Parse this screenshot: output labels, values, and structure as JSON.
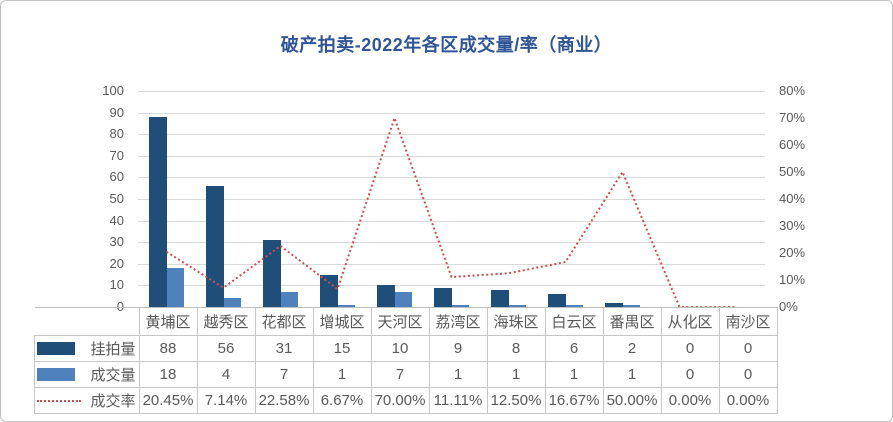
{
  "title": "破产拍卖-2022年各区成交量/率（商业）",
  "colors": {
    "title_text": "#2F5597",
    "bar_listed": "#1F4E79",
    "bar_sold": "#4F81BD",
    "rate_line": "#C9504C",
    "gridline": "#d9d9d9",
    "axis_text": "#595959",
    "table_border": "#c6c6c6"
  },
  "left_axis_ticks": [
    "100",
    "90",
    "80",
    "70",
    "60",
    "50",
    "40",
    "30",
    "20",
    "10",
    "0"
  ],
  "right_axis_ticks": [
    "80%",
    "70%",
    "60%",
    "50%",
    "40%",
    "30%",
    "20%",
    "10%",
    "0%"
  ],
  "chart_data": {
    "type": "combo bar+line",
    "title": "破产拍卖-2022年各区成交量/率（商业）",
    "categories": [
      "黄埔区",
      "越秀区",
      "花都区",
      "增城区",
      "天河区",
      "荔湾区",
      "海珠区",
      "白云区",
      "番禺区",
      "从化区",
      "南沙区"
    ],
    "series": [
      {
        "name": "挂拍量",
        "type": "bar",
        "axis": "left",
        "color": "#1F4E79",
        "values": [
          88,
          56,
          31,
          15,
          10,
          9,
          8,
          6,
          2,
          0,
          0
        ],
        "display": [
          "88",
          "56",
          "31",
          "15",
          "10",
          "9",
          "8",
          "6",
          "2",
          "0",
          "0"
        ]
      },
      {
        "name": "成交量",
        "type": "bar",
        "axis": "left",
        "color": "#4F81BD",
        "values": [
          18,
          4,
          7,
          1,
          7,
          1,
          1,
          1,
          1,
          0,
          0
        ],
        "display": [
          "18",
          "4",
          "7",
          "1",
          "7",
          "1",
          "1",
          "1",
          "1",
          "0",
          "0"
        ]
      },
      {
        "name": "成交率",
        "type": "line",
        "line_style": "dotted",
        "axis": "right",
        "color": "#C9504C",
        "values": [
          20.45,
          7.14,
          22.58,
          6.67,
          70.0,
          11.11,
          12.5,
          16.67,
          50.0,
          0.0,
          0.0
        ],
        "display": [
          "20.45%",
          "7.14%",
          "22.58%",
          "6.67%",
          "70.00%",
          "11.11%",
          "12.50%",
          "16.67%",
          "50.00%",
          "0.00%",
          "0.00%"
        ]
      }
    ],
    "left_axis": {
      "min": 0,
      "max": 100,
      "step": 10
    },
    "right_axis": {
      "min": 0,
      "max": 80,
      "step": 10,
      "format": "percent"
    },
    "grid": true,
    "legend_position": "data-table-left"
  }
}
